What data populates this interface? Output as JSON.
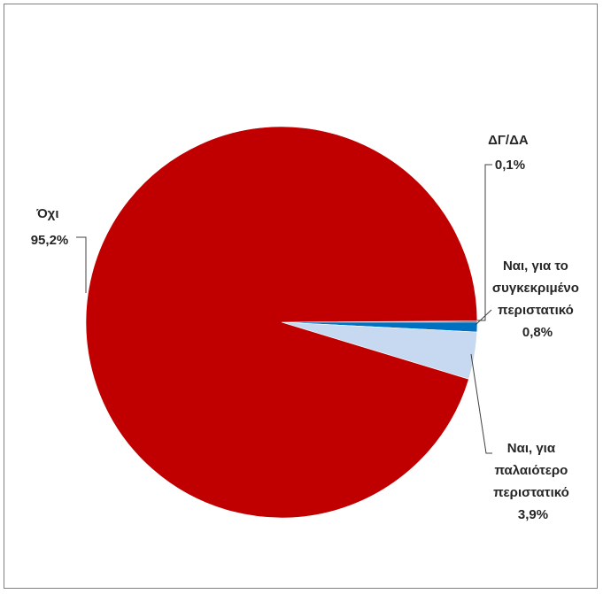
{
  "chart_data": {
    "type": "pie",
    "title": "",
    "slices": [
      {
        "label": "Όχι",
        "value": 95.2,
        "value_label": "95,2%",
        "color": "#c00000"
      },
      {
        "label": "ΔΓ/ΔΑ",
        "value": 0.1,
        "value_label": "0,1%",
        "color": "#1f4e79"
      },
      {
        "label": "Ναι, για το συγκεκριμένο περιστατικό",
        "value": 0.8,
        "value_label": "0,8%",
        "color": "#0070c0"
      },
      {
        "label": "Ναι, για παλαιότερο περιστατικό",
        "value": 3.9,
        "value_label": "3,9%",
        "color": "#c6d9f1"
      }
    ],
    "legend": "none",
    "data_labels": "outside with leader lines"
  }
}
